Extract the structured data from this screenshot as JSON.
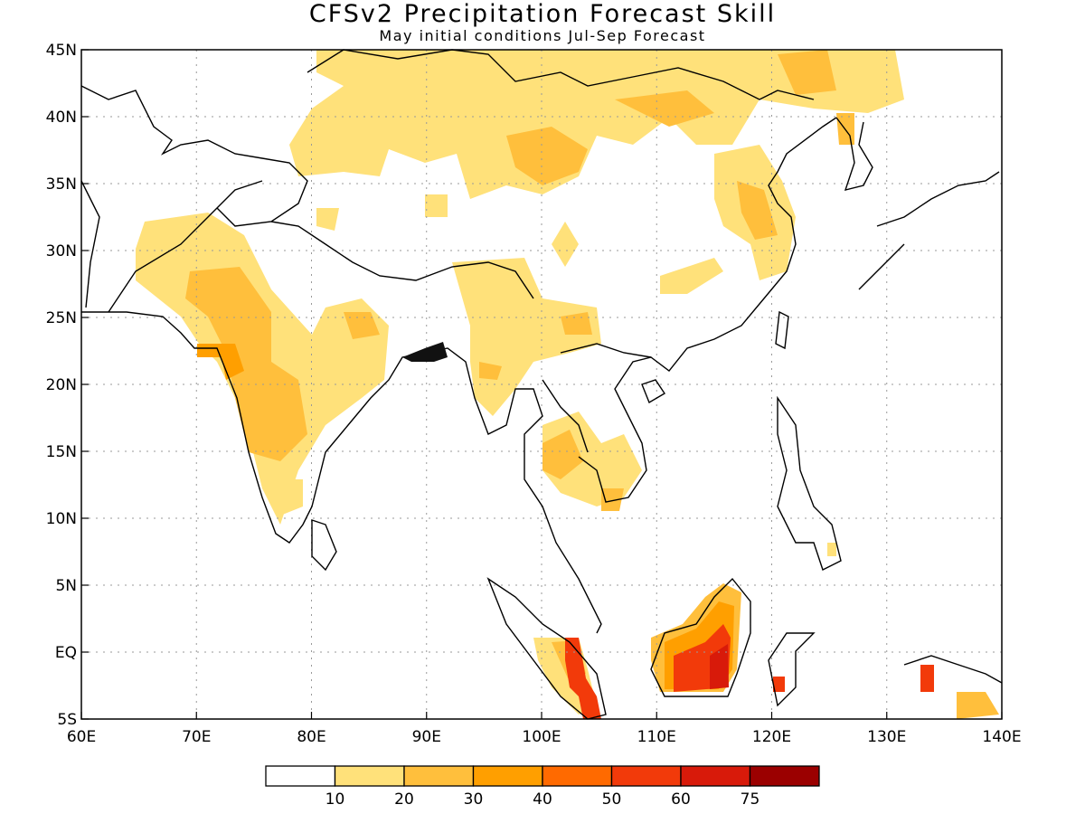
{
  "header": {
    "title": "CFSv2 Precipitation Forecast Skill",
    "subtitle": "May initial conditions  Jul-Sep Forecast"
  },
  "map": {
    "lon_range": [
      60,
      140
    ],
    "lat_range": [
      -5,
      45
    ],
    "lon_ticks": [
      "60E",
      "70E",
      "80E",
      "90E",
      "100E",
      "110E",
      "120E",
      "130E",
      "140E"
    ],
    "lat_ticks": [
      "45N",
      "40N",
      "35N",
      "30N",
      "25N",
      "20N",
      "15N",
      "10N",
      "5N",
      "EQ",
      "5S"
    ],
    "gridlines": "dotted"
  },
  "colorbar": {
    "labels": [
      "10",
      "20",
      "30",
      "40",
      "50",
      "60",
      "75"
    ],
    "colors": [
      "#ffffff",
      "#ffe17a",
      "#ffbf3c",
      "#ff9f00",
      "#ff6a00",
      "#f23a0a",
      "#d81a0a",
      "#9b0000"
    ]
  }
}
